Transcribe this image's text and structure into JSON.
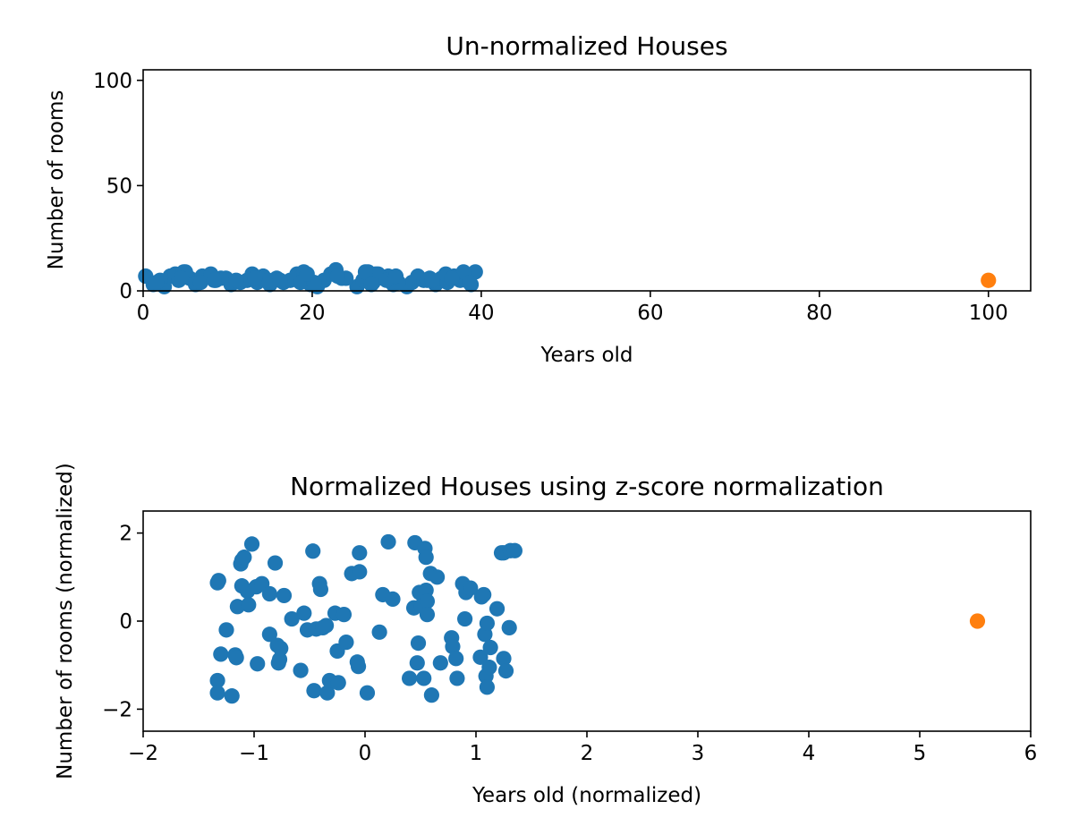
{
  "chart_data": [
    {
      "type": "scatter",
      "title": "Un-normalized Houses",
      "xlabel": "Years old",
      "ylabel": "Number of rooms",
      "xlim": [
        0,
        105
      ],
      "ylim": [
        0,
        105
      ],
      "xticks": [
        0,
        20,
        40,
        60,
        80,
        100
      ],
      "yticks": [
        0,
        50,
        100
      ],
      "xtick_labels": [
        "0",
        "20",
        "40",
        "60",
        "80",
        "100"
      ],
      "ytick_labels": [
        "0",
        "50",
        "100"
      ],
      "grid": false,
      "series": [
        {
          "color": "#1f77b4",
          "points": [
            [
              0.3,
              7
            ],
            [
              1.2,
              3
            ],
            [
              2.5,
              2
            ],
            [
              3.2,
              7
            ],
            [
              3.8,
              8
            ],
            [
              4.2,
              5
            ],
            [
              4.8,
              9
            ],
            [
              5.5,
              6
            ],
            [
              6.2,
              3
            ],
            [
              7.0,
              7
            ],
            [
              8.0,
              8
            ],
            [
              8.6,
              5
            ],
            [
              9.2,
              6
            ],
            [
              10.4,
              3
            ],
            [
              11.5,
              4
            ],
            [
              12.3,
              5
            ],
            [
              12.9,
              8
            ],
            [
              13.5,
              4
            ],
            [
              14.2,
              7
            ],
            [
              15.0,
              3
            ],
            [
              15.8,
              6
            ],
            [
              16.6,
              4
            ],
            [
              17.4,
              5
            ],
            [
              18.2,
              8
            ],
            [
              19.0,
              9
            ],
            [
              19.8,
              3
            ],
            [
              20.6,
              2
            ],
            [
              21.4,
              5
            ],
            [
              22.2,
              8
            ],
            [
              22.8,
              10
            ],
            [
              23.5,
              6
            ],
            [
              25.3,
              2
            ],
            [
              26.0,
              5
            ],
            [
              26.6,
              9
            ],
            [
              27.2,
              4
            ],
            [
              27.8,
              8
            ],
            [
              28.4,
              6
            ],
            [
              29.0,
              7
            ],
            [
              29.6,
              3
            ],
            [
              31.2,
              2
            ],
            [
              31.8,
              4
            ],
            [
              32.5,
              7
            ],
            [
              33.2,
              5
            ],
            [
              33.9,
              6
            ],
            [
              34.6,
              3
            ],
            [
              35.3,
              6
            ],
            [
              36.0,
              4
            ],
            [
              36.8,
              7
            ],
            [
              37.5,
              5
            ],
            [
              38.2,
              8
            ],
            [
              38.8,
              3
            ],
            [
              39.3,
              9
            ],
            [
              2.0,
              5
            ],
            [
              6.8,
              4
            ],
            [
              9.8,
              6
            ],
            [
              14.8,
              5
            ],
            [
              18.6,
              4
            ],
            [
              24.0,
              6
            ],
            [
              27.5,
              8
            ],
            [
              30.2,
              4
            ],
            [
              35.8,
              8
            ],
            [
              37.9,
              9
            ],
            [
              1.6,
              4
            ],
            [
              5.0,
              9
            ],
            [
              11.0,
              5
            ],
            [
              16.2,
              5
            ],
            [
              20.2,
              4
            ],
            [
              26.3,
              9
            ],
            [
              28.8,
              5
            ],
            [
              33.6,
              5
            ],
            [
              36.5,
              6
            ],
            [
              38.6,
              4
            ],
            [
              4.5,
              6
            ],
            [
              8.4,
              5
            ],
            [
              13.2,
              6
            ],
            [
              19.4,
              8
            ],
            [
              23.0,
              7
            ],
            [
              27.0,
              3
            ],
            [
              29.9,
              7
            ],
            [
              34.2,
              5
            ]
          ]
        },
        {
          "color": "#ff7f0e",
          "points": [
            [
              100,
              5
            ]
          ]
        }
      ]
    },
    {
      "type": "scatter",
      "title": "Normalized Houses using z-score normalization",
      "xlabel": "Years old (normalized)",
      "ylabel": "Number of rooms (normalized)",
      "xlim": [
        -2,
        6
      ],
      "ylim": [
        -2.5,
        2.5
      ],
      "xticks": [
        -2,
        -1,
        0,
        1,
        2,
        3,
        4,
        5,
        6
      ],
      "yticks": [
        -2,
        0,
        2
      ],
      "xtick_labels": [
        "−2",
        "−1",
        "0",
        "1",
        "2",
        "3",
        "4",
        "5",
        "6"
      ],
      "ytick_labels": [
        "−2",
        "0",
        "2"
      ],
      "grid": false,
      "series": [
        {
          "color": "#1f77b4",
          "points": [
            [
              -1.32,
              0.92
            ],
            [
              -1.33,
              0.87
            ],
            [
              -1.3,
              -0.75
            ],
            [
              -1.25,
              -0.2
            ],
            [
              -1.33,
              -1.35
            ],
            [
              -1.33,
              -1.63
            ],
            [
              -1.2,
              -1.7
            ],
            [
              -1.15,
              0.33
            ],
            [
              -1.17,
              -0.77
            ],
            [
              -1.16,
              -0.83
            ],
            [
              -1.12,
              1.3
            ],
            [
              -1.11,
              1.38
            ],
            [
              -1.09,
              1.45
            ],
            [
              -1.11,
              0.8
            ],
            [
              -1.06,
              0.68
            ],
            [
              -1.05,
              0.37
            ],
            [
              -1.02,
              1.75
            ],
            [
              -0.98,
              0.78
            ],
            [
              -0.97,
              -0.97
            ],
            [
              -0.93,
              0.85
            ],
            [
              -0.86,
              0.62
            ],
            [
              -0.86,
              -0.3
            ],
            [
              -0.81,
              1.32
            ],
            [
              -0.79,
              -0.55
            ],
            [
              -0.78,
              -0.95
            ],
            [
              -0.77,
              -0.87
            ],
            [
              -0.76,
              -0.62
            ],
            [
              -0.73,
              0.58
            ],
            [
              -0.66,
              0.05
            ],
            [
              -0.58,
              -1.12
            ],
            [
              -0.55,
              0.18
            ],
            [
              -0.52,
              -0.2
            ],
            [
              -0.47,
              1.59
            ],
            [
              -0.46,
              -1.58
            ],
            [
              -0.44,
              -0.18
            ],
            [
              -0.41,
              0.85
            ],
            [
              -0.4,
              0.72
            ],
            [
              -0.38,
              -0.15
            ],
            [
              -0.35,
              -0.1
            ],
            [
              -0.34,
              -1.63
            ],
            [
              -0.32,
              -1.35
            ],
            [
              -0.27,
              0.18
            ],
            [
              -0.25,
              -0.68
            ],
            [
              -0.24,
              -1.4
            ],
            [
              -0.19,
              0.15
            ],
            [
              -0.17,
              -0.48
            ],
            [
              -0.12,
              1.08
            ],
            [
              -0.07,
              -0.93
            ],
            [
              -0.05,
              1.12
            ],
            [
              -0.05,
              1.55
            ],
            [
              -0.06,
              -1.03
            ],
            [
              0.02,
              -1.63
            ],
            [
              0.13,
              -0.25
            ],
            [
              0.16,
              0.6
            ],
            [
              0.21,
              1.8
            ],
            [
              0.25,
              0.5
            ],
            [
              0.4,
              -1.3
            ],
            [
              0.44,
              0.3
            ],
            [
              0.45,
              1.78
            ],
            [
              0.47,
              -0.95
            ],
            [
              0.48,
              -0.5
            ],
            [
              0.49,
              0.65
            ],
            [
              0.51,
              0.35
            ],
            [
              0.53,
              -1.3
            ],
            [
              0.54,
              1.65
            ],
            [
              0.55,
              1.45
            ],
            [
              0.55,
              0.7
            ],
            [
              0.56,
              0.45
            ],
            [
              0.56,
              0.15
            ],
            [
              0.59,
              1.08
            ],
            [
              0.6,
              -1.68
            ],
            [
              0.65,
              1.0
            ],
            [
              0.68,
              -0.95
            ],
            [
              0.78,
              -0.38
            ],
            [
              0.79,
              -0.58
            ],
            [
              0.82,
              -0.85
            ],
            [
              0.83,
              -1.3
            ],
            [
              0.88,
              0.85
            ],
            [
              0.9,
              0.05
            ],
            [
              0.91,
              0.65
            ],
            [
              0.95,
              0.75
            ],
            [
              1.04,
              -0.82
            ],
            [
              1.05,
              0.55
            ],
            [
              1.07,
              0.6
            ],
            [
              1.08,
              -0.3
            ],
            [
              1.09,
              -1.25
            ],
            [
              1.1,
              -1.5
            ],
            [
              1.1,
              -0.05
            ],
            [
              1.12,
              -1.05
            ],
            [
              1.13,
              -0.6
            ],
            [
              1.19,
              0.28
            ],
            [
              1.23,
              1.55
            ],
            [
              1.25,
              1.55
            ],
            [
              1.25,
              -0.85
            ],
            [
              1.27,
              -1.13
            ],
            [
              1.3,
              -0.15
            ],
            [
              1.31,
              1.6
            ],
            [
              1.35,
              1.6
            ]
          ]
        },
        {
          "color": "#ff7f0e",
          "points": [
            [
              5.52,
              0.0
            ]
          ]
        }
      ]
    }
  ]
}
